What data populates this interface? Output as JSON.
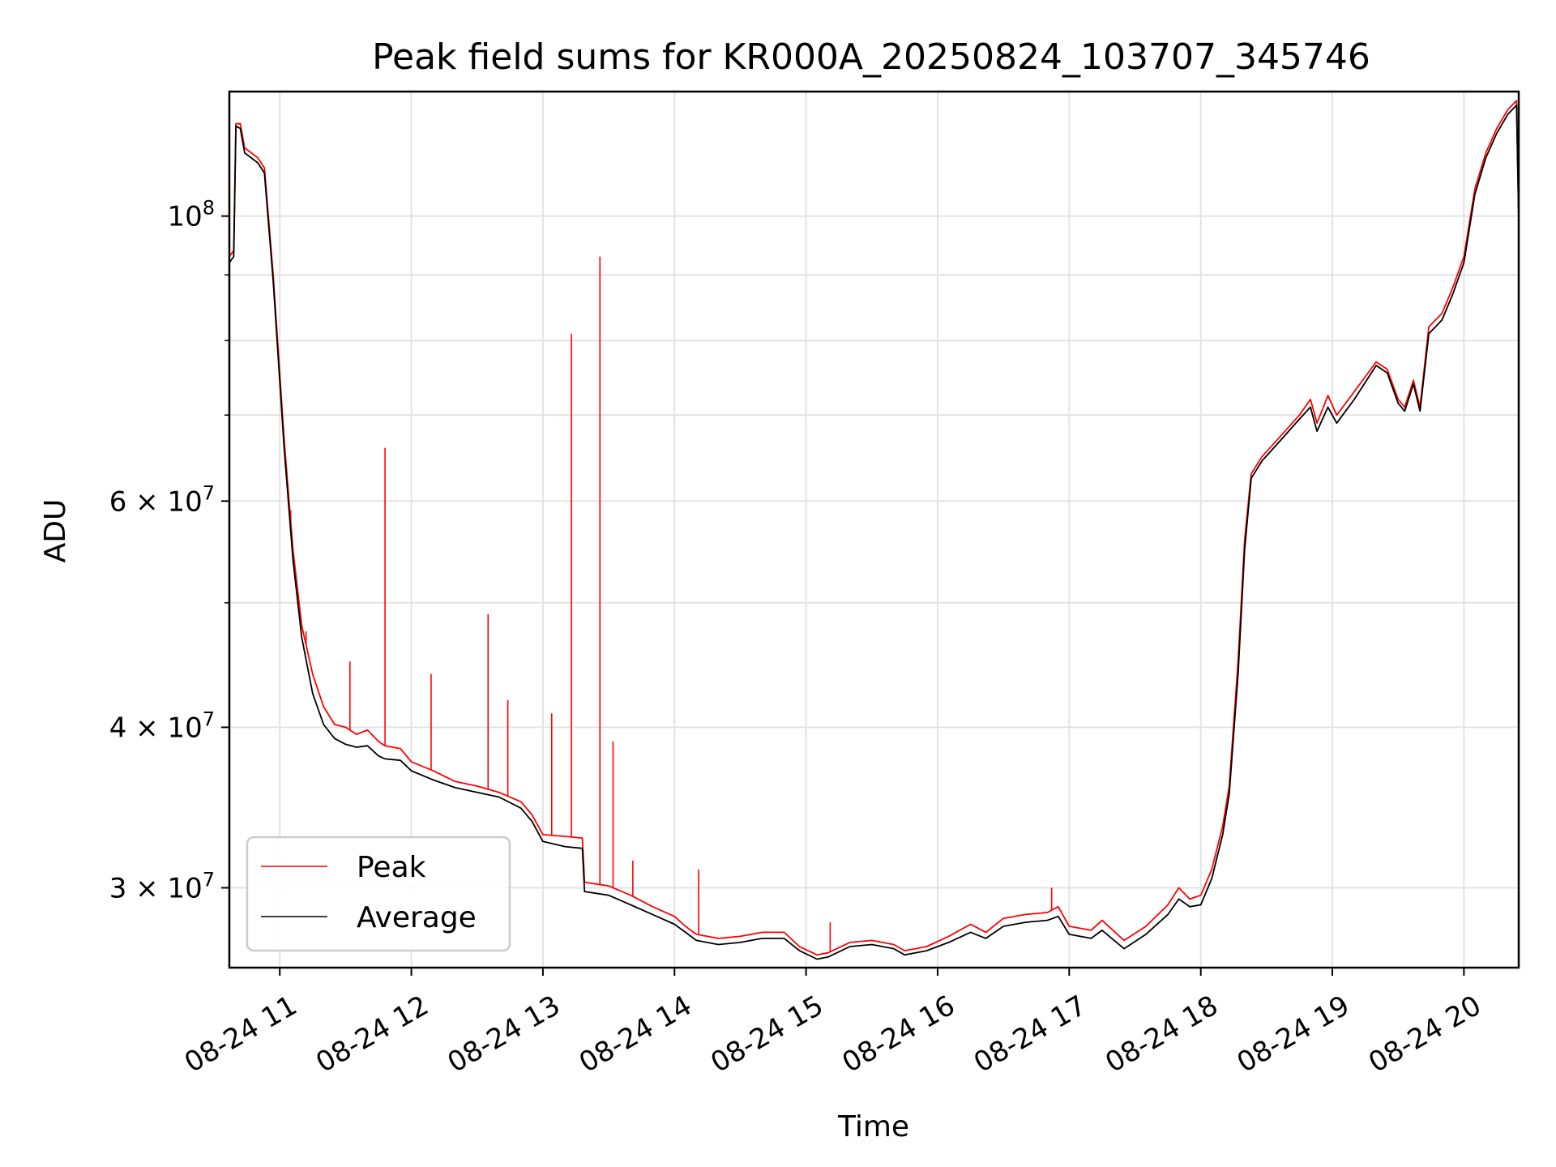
{
  "chart_data": {
    "type": "line",
    "title": "Peak field sums for KR000A_20250824_103707_345746",
    "xlabel": "Time",
    "ylabel": "ADU",
    "xscale": "time",
    "yscale": "log",
    "xlim": [
      "2025-08-24 10:37",
      "2025-08-24 20:25"
    ],
    "ylim": [
      26000000,
      125000000
    ],
    "grid": true,
    "legend_position": "lower-left",
    "x_ticks": [
      {
        "value": "2025-08-24 11:00",
        "label": "08-24 11"
      },
      {
        "value": "2025-08-24 12:00",
        "label": "08-24 12"
      },
      {
        "value": "2025-08-24 13:00",
        "label": "08-24 13"
      },
      {
        "value": "2025-08-24 14:00",
        "label": "08-24 14"
      },
      {
        "value": "2025-08-24 15:00",
        "label": "08-24 15"
      },
      {
        "value": "2025-08-24 16:00",
        "label": "08-24 16"
      },
      {
        "value": "2025-08-24 17:00",
        "label": "08-24 17"
      },
      {
        "value": "2025-08-24 18:00",
        "label": "08-24 18"
      },
      {
        "value": "2025-08-24 19:00",
        "label": "08-24 19"
      },
      {
        "value": "2025-08-24 20:00",
        "label": "08-24 20"
      }
    ],
    "y_ticks": [
      {
        "value": 30000000,
        "base": "3 × 10",
        "exp": "7"
      },
      {
        "value": 40000000,
        "base": "4 × 10",
        "exp": "7"
      },
      {
        "value": 60000000,
        "base": "6 × 10",
        "exp": "7"
      },
      {
        "value": 100000000,
        "base": "10",
        "exp": "8"
      }
    ],
    "y_minor_ticks": [
      50000000,
      70000000,
      80000000,
      90000000
    ],
    "series": [
      {
        "name": "Peak",
        "color": "#ff0000",
        "points": [
          [
            "2025-08-24 10:37",
            93000000
          ],
          [
            "2025-08-24 10:39",
            94000000
          ],
          [
            "2025-08-24 10:40",
            118000000
          ],
          [
            "2025-08-24 10:42",
            118000000
          ],
          [
            "2025-08-24 10:44",
            113000000
          ],
          [
            "2025-08-24 10:50",
            111000000
          ],
          [
            "2025-08-24 10:53",
            109000000
          ],
          [
            "2025-08-24 10:57",
            90000000
          ],
          [
            "2025-08-24 11:02",
            67000000
          ],
          [
            "2025-08-24 11:06",
            55000000
          ],
          [
            "2025-08-24 11:10",
            48000000
          ],
          [
            "2025-08-24 11:15",
            44000000
          ],
          [
            "2025-08-24 11:20",
            41500000
          ],
          [
            "2025-08-24 11:25",
            40200000
          ],
          [
            "2025-08-24 11:30",
            40000000
          ],
          [
            "2025-08-24 11:35",
            39500000
          ],
          [
            "2025-08-24 11:40",
            39800000
          ],
          [
            "2025-08-24 11:45",
            39000000
          ],
          [
            "2025-08-24 11:48",
            38700000
          ],
          [
            "2025-08-24 11:55",
            38500000
          ],
          [
            "2025-08-24 12:00",
            37600000
          ],
          [
            "2025-08-24 12:10",
            37000000
          ],
          [
            "2025-08-24 12:20",
            36300000
          ],
          [
            "2025-08-24 12:30",
            36000000
          ],
          [
            "2025-08-24 12:40",
            35600000
          ],
          [
            "2025-08-24 12:50",
            35000000
          ],
          [
            "2025-08-24 12:55",
            34200000
          ],
          [
            "2025-08-24 13:00",
            33000000
          ],
          [
            "2025-08-24 13:10",
            32900000
          ],
          [
            "2025-08-24 13:18",
            32800000
          ],
          [
            "2025-08-24 13:19",
            30300000
          ],
          [
            "2025-08-24 13:30",
            30100000
          ],
          [
            "2025-08-24 13:40",
            29600000
          ],
          [
            "2025-08-24 13:50",
            29000000
          ],
          [
            "2025-08-24 14:00",
            28500000
          ],
          [
            "2025-08-24 14:05",
            28000000
          ],
          [
            "2025-08-24 14:10",
            27600000
          ],
          [
            "2025-08-24 14:20",
            27400000
          ],
          [
            "2025-08-24 14:30",
            27500000
          ],
          [
            "2025-08-24 14:40",
            27700000
          ],
          [
            "2025-08-24 14:50",
            27700000
          ],
          [
            "2025-08-24 14:57",
            27000000
          ],
          [
            "2025-08-24 15:05",
            26600000
          ],
          [
            "2025-08-24 15:10",
            26700000
          ],
          [
            "2025-08-24 15:20",
            27200000
          ],
          [
            "2025-08-24 15:30",
            27300000
          ],
          [
            "2025-08-24 15:40",
            27100000
          ],
          [
            "2025-08-24 15:45",
            26800000
          ],
          [
            "2025-08-24 15:55",
            27000000
          ],
          [
            "2025-08-24 16:05",
            27500000
          ],
          [
            "2025-08-24 16:15",
            28100000
          ],
          [
            "2025-08-24 16:22",
            27700000
          ],
          [
            "2025-08-24 16:30",
            28400000
          ],
          [
            "2025-08-24 16:40",
            28600000
          ],
          [
            "2025-08-24 16:50",
            28700000
          ],
          [
            "2025-08-24 16:55",
            29000000
          ],
          [
            "2025-08-24 17:00",
            28000000
          ],
          [
            "2025-08-24 17:10",
            27800000
          ],
          [
            "2025-08-24 17:15",
            28300000
          ],
          [
            "2025-08-24 17:25",
            27300000
          ],
          [
            "2025-08-24 17:35",
            28000000
          ],
          [
            "2025-08-24 17:45",
            29100000
          ],
          [
            "2025-08-24 17:50",
            30000000
          ],
          [
            "2025-08-24 17:55",
            29400000
          ],
          [
            "2025-08-24 18:00",
            29600000
          ],
          [
            "2025-08-24 18:05",
            31000000
          ],
          [
            "2025-08-24 18:10",
            33500000
          ],
          [
            "2025-08-24 18:13",
            36000000
          ],
          [
            "2025-08-24 18:17",
            45000000
          ],
          [
            "2025-08-24 18:20",
            56000000
          ],
          [
            "2025-08-24 18:23",
            63000000
          ],
          [
            "2025-08-24 18:28",
            65000000
          ],
          [
            "2025-08-24 18:35",
            67000000
          ],
          [
            "2025-08-24 18:45",
            70000000
          ],
          [
            "2025-08-24 18:50",
            72000000
          ],
          [
            "2025-08-24 18:53",
            69000000
          ],
          [
            "2025-08-24 18:58",
            72500000
          ],
          [
            "2025-08-24 19:02",
            70000000
          ],
          [
            "2025-08-24 19:10",
            73000000
          ],
          [
            "2025-08-24 19:20",
            77000000
          ],
          [
            "2025-08-24 19:25",
            76000000
          ],
          [
            "2025-08-24 19:30",
            72000000
          ],
          [
            "2025-08-24 19:33",
            71000000
          ],
          [
            "2025-08-24 19:37",
            74500000
          ],
          [
            "2025-08-24 19:40",
            71000000
          ],
          [
            "2025-08-24 19:44",
            82000000
          ],
          [
            "2025-08-24 19:50",
            84000000
          ],
          [
            "2025-08-24 19:55",
            88000000
          ],
          [
            "2025-08-24 20:00",
            93000000
          ],
          [
            "2025-08-24 20:05",
            105000000
          ],
          [
            "2025-08-24 20:10",
            112000000
          ],
          [
            "2025-08-24 20:15",
            117000000
          ],
          [
            "2025-08-24 20:20",
            121000000
          ],
          [
            "2025-08-24 20:24",
            123000000
          ],
          [
            "2025-08-24 20:25",
            100000000
          ]
        ],
        "spikes": [
          [
            "2025-08-24 11:05",
            59000000
          ],
          [
            "2025-08-24 11:12",
            47500000
          ],
          [
            "2025-08-24 11:32",
            45000000
          ],
          [
            "2025-08-24 11:48",
            66000000
          ],
          [
            "2025-08-24 12:09",
            44000000
          ],
          [
            "2025-08-24 12:35",
            49000000
          ],
          [
            "2025-08-24 12:44",
            42000000
          ],
          [
            "2025-08-24 13:04",
            41000000
          ],
          [
            "2025-08-24 13:13",
            81000000
          ],
          [
            "2025-08-24 13:26",
            93000000
          ],
          [
            "2025-08-24 13:32",
            39000000
          ],
          [
            "2025-08-24 13:41",
            31500000
          ],
          [
            "2025-08-24 14:11",
            31000000
          ],
          [
            "2025-08-24 15:11",
            28200000
          ],
          [
            "2025-08-24 16:52",
            30000000
          ]
        ]
      },
      {
        "name": "Average",
        "color": "#000000",
        "points": [
          [
            "2025-08-24 10:37",
            92000000
          ],
          [
            "2025-08-24 10:39",
            93000000
          ],
          [
            "2025-08-24 10:40",
            117500000
          ],
          [
            "2025-08-24 10:42",
            117000000
          ],
          [
            "2025-08-24 10:44",
            112000000
          ],
          [
            "2025-08-24 10:50",
            110000000
          ],
          [
            "2025-08-24 10:53",
            108000000
          ],
          [
            "2025-08-24 10:57",
            89000000
          ],
          [
            "2025-08-24 11:02",
            66000000
          ],
          [
            "2025-08-24 11:06",
            54000000
          ],
          [
            "2025-08-24 11:10",
            47000000
          ],
          [
            "2025-08-24 11:15",
            42500000
          ],
          [
            "2025-08-24 11:20",
            40200000
          ],
          [
            "2025-08-24 11:25",
            39200000
          ],
          [
            "2025-08-24 11:30",
            38800000
          ],
          [
            "2025-08-24 11:35",
            38600000
          ],
          [
            "2025-08-24 11:40",
            38700000
          ],
          [
            "2025-08-24 11:45",
            38000000
          ],
          [
            "2025-08-24 11:48",
            37800000
          ],
          [
            "2025-08-24 11:55",
            37700000
          ],
          [
            "2025-08-24 12:00",
            37000000
          ],
          [
            "2025-08-24 12:10",
            36400000
          ],
          [
            "2025-08-24 12:20",
            35900000
          ],
          [
            "2025-08-24 12:30",
            35600000
          ],
          [
            "2025-08-24 12:40",
            35300000
          ],
          [
            "2025-08-24 12:50",
            34600000
          ],
          [
            "2025-08-24 12:55",
            33800000
          ],
          [
            "2025-08-24 13:00",
            32600000
          ],
          [
            "2025-08-24 13:10",
            32300000
          ],
          [
            "2025-08-24 13:18",
            32200000
          ],
          [
            "2025-08-24 13:19",
            29800000
          ],
          [
            "2025-08-24 13:30",
            29600000
          ],
          [
            "2025-08-24 13:40",
            29100000
          ],
          [
            "2025-08-24 13:50",
            28600000
          ],
          [
            "2025-08-24 14:00",
            28100000
          ],
          [
            "2025-08-24 14:05",
            27700000
          ],
          [
            "2025-08-24 14:10",
            27300000
          ],
          [
            "2025-08-24 14:20",
            27100000
          ],
          [
            "2025-08-24 14:30",
            27200000
          ],
          [
            "2025-08-24 14:40",
            27400000
          ],
          [
            "2025-08-24 14:50",
            27400000
          ],
          [
            "2025-08-24 14:57",
            26800000
          ],
          [
            "2025-08-24 15:05",
            26400000
          ],
          [
            "2025-08-24 15:10",
            26500000
          ],
          [
            "2025-08-24 15:20",
            27000000
          ],
          [
            "2025-08-24 15:30",
            27100000
          ],
          [
            "2025-08-24 15:40",
            26900000
          ],
          [
            "2025-08-24 15:45",
            26600000
          ],
          [
            "2025-08-24 15:55",
            26800000
          ],
          [
            "2025-08-24 16:05",
            27200000
          ],
          [
            "2025-08-24 16:15",
            27700000
          ],
          [
            "2025-08-24 16:22",
            27400000
          ],
          [
            "2025-08-24 16:30",
            28000000
          ],
          [
            "2025-08-24 16:40",
            28200000
          ],
          [
            "2025-08-24 16:50",
            28300000
          ],
          [
            "2025-08-24 16:55",
            28500000
          ],
          [
            "2025-08-24 17:00",
            27600000
          ],
          [
            "2025-08-24 17:10",
            27400000
          ],
          [
            "2025-08-24 17:15",
            27800000
          ],
          [
            "2025-08-24 17:25",
            26900000
          ],
          [
            "2025-08-24 17:35",
            27600000
          ],
          [
            "2025-08-24 17:45",
            28600000
          ],
          [
            "2025-08-24 17:50",
            29400000
          ],
          [
            "2025-08-24 17:55",
            29000000
          ],
          [
            "2025-08-24 18:00",
            29100000
          ],
          [
            "2025-08-24 18:05",
            30500000
          ],
          [
            "2025-08-24 18:10",
            33000000
          ],
          [
            "2025-08-24 18:13",
            35500000
          ],
          [
            "2025-08-24 18:17",
            44000000
          ],
          [
            "2025-08-24 18:20",
            55000000
          ],
          [
            "2025-08-24 18:23",
            62500000
          ],
          [
            "2025-08-24 18:28",
            64500000
          ],
          [
            "2025-08-24 18:35",
            66500000
          ],
          [
            "2025-08-24 18:45",
            69500000
          ],
          [
            "2025-08-24 18:50",
            71000000
          ],
          [
            "2025-08-24 18:53",
            68000000
          ],
          [
            "2025-08-24 18:58",
            71000000
          ],
          [
            "2025-08-24 19:02",
            69000000
          ],
          [
            "2025-08-24 19:10",
            72000000
          ],
          [
            "2025-08-24 19:20",
            76500000
          ],
          [
            "2025-08-24 19:25",
            75500000
          ],
          [
            "2025-08-24 19:30",
            71500000
          ],
          [
            "2025-08-24 19:33",
            70500000
          ],
          [
            "2025-08-24 19:37",
            74000000
          ],
          [
            "2025-08-24 19:40",
            70500000
          ],
          [
            "2025-08-24 19:44",
            81000000
          ],
          [
            "2025-08-24 19:50",
            83000000
          ],
          [
            "2025-08-24 19:55",
            87000000
          ],
          [
            "2025-08-24 20:00",
            92000000
          ],
          [
            "2025-08-24 20:05",
            104000000
          ],
          [
            "2025-08-24 20:10",
            111000000
          ],
          [
            "2025-08-24 20:15",
            116000000
          ],
          [
            "2025-08-24 20:20",
            120000000
          ],
          [
            "2025-08-24 20:24",
            122000000
          ],
          [
            "2025-08-24 20:25",
            99000000
          ]
        ]
      }
    ]
  }
}
